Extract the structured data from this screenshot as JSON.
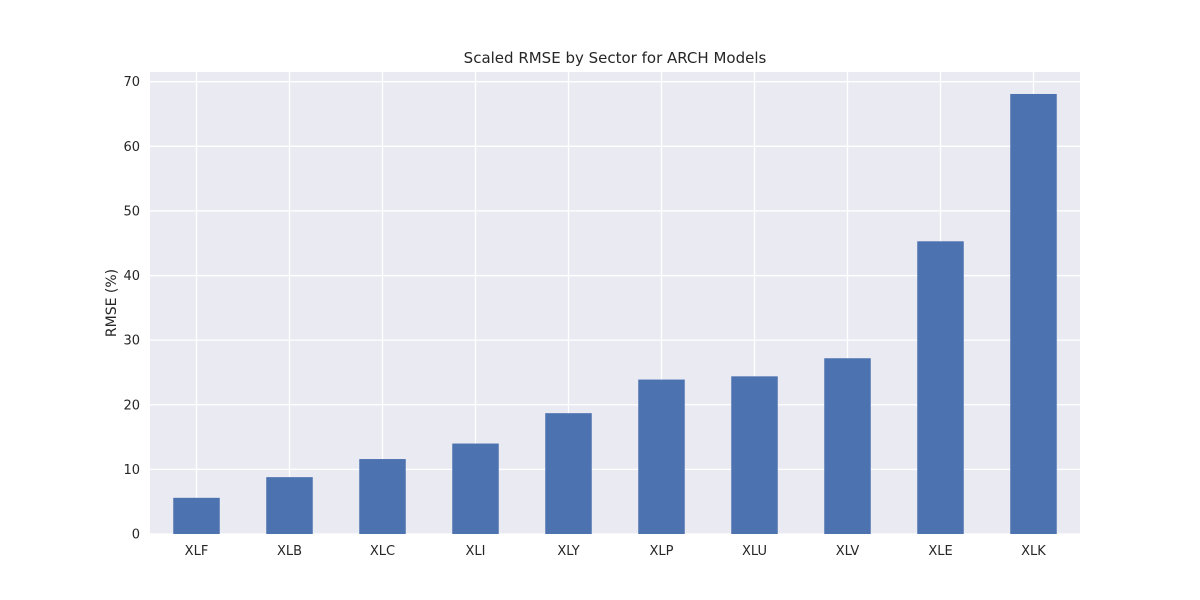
{
  "chart_data": {
    "type": "bar",
    "title": "Scaled RMSE by Sector for ARCH Models",
    "xlabel": "",
    "ylabel": "RMSE (%)",
    "categories": [
      "XLF",
      "XLB",
      "XLC",
      "XLI",
      "XLY",
      "XLP",
      "XLU",
      "XLV",
      "XLE",
      "XLK"
    ],
    "values": [
      5.6,
      8.8,
      11.6,
      14.0,
      18.7,
      23.9,
      24.4,
      27.2,
      45.3,
      68.1
    ],
    "ylim": [
      0,
      71.5
    ],
    "yticks": [
      "0",
      "10",
      "20",
      "30",
      "40",
      "50",
      "60",
      "70"
    ],
    "grid": true,
    "legend": "none",
    "colors": {
      "bar": "#4c72b0",
      "plot_background": "#eaeaf2",
      "grid": "#ffffff",
      "text": "#262626"
    }
  }
}
